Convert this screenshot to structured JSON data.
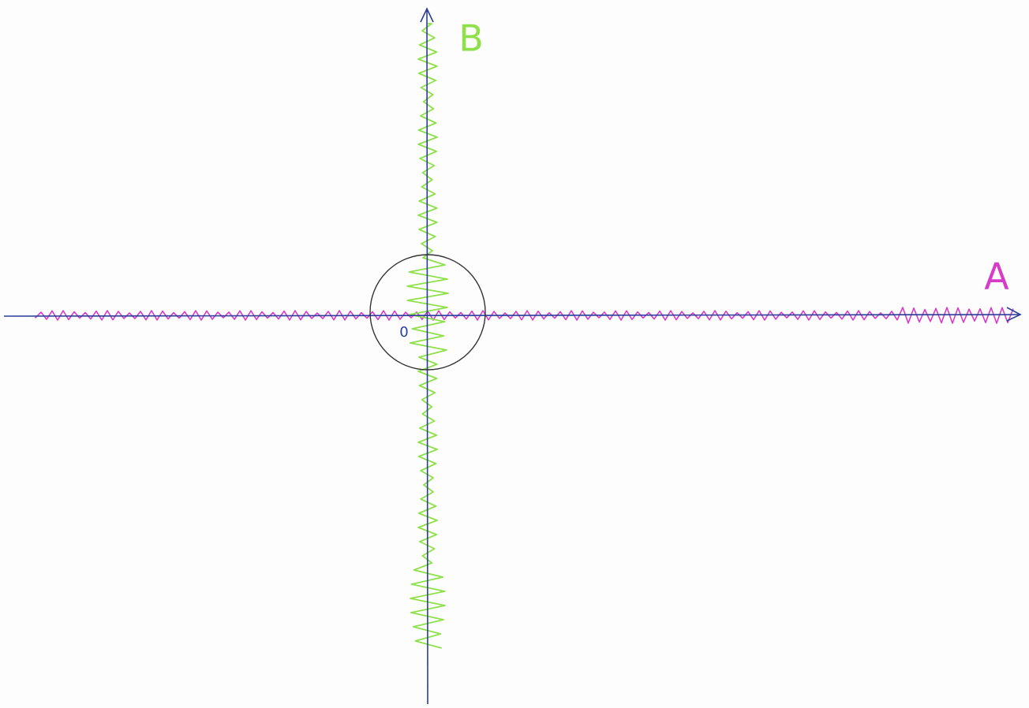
{
  "labels": {
    "b": "B",
    "a": "A",
    "origin": "0"
  }
}
